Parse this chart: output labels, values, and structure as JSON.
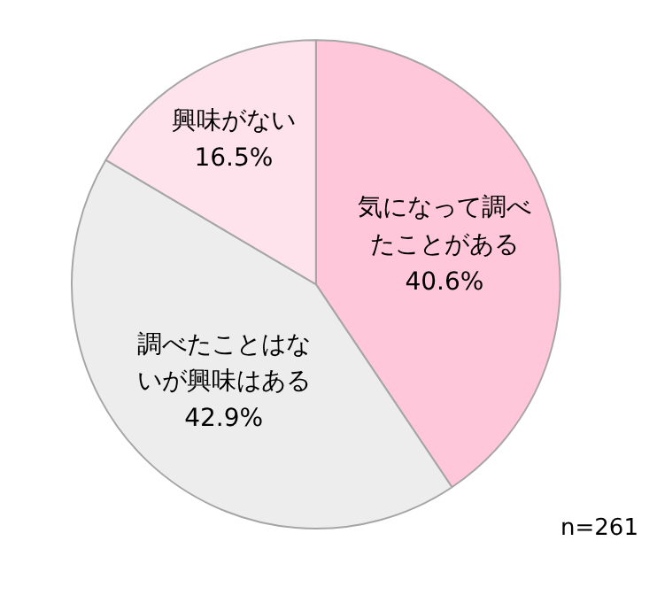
{
  "chart_data": {
    "type": "pie",
    "categories": [
      "気になって調べたことがある",
      "調べたことはないが興味はある",
      "興味がない"
    ],
    "values": [
      40.6,
      42.9,
      16.5
    ],
    "value_labels": [
      "40.6%",
      "42.9%",
      "16.5%"
    ],
    "colors": [
      "#ffc7d9",
      "#ededed",
      "#ffe3ec"
    ],
    "annotations": [
      "n=261"
    ]
  }
}
